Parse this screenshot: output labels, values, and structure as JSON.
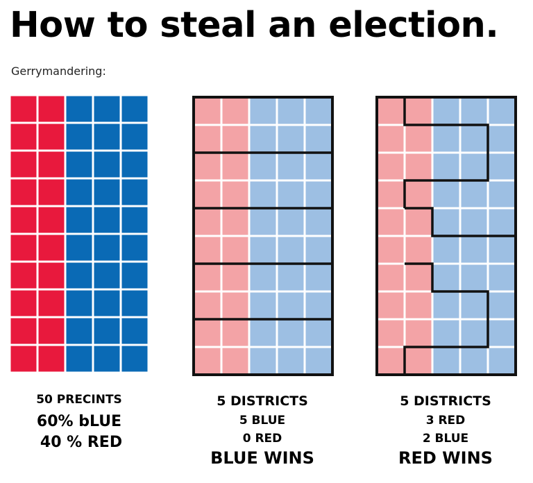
{
  "title": "How to steal an election.",
  "subtitle": "Gerrymandering:",
  "colors": {
    "red": "#E8193D",
    "blue": "#0A6AB5",
    "light_red": "#F3A3A6",
    "light_blue": "#9DBFE3",
    "border": "#111111"
  },
  "grid": {
    "columns": 5,
    "rows": 10,
    "red_columns": 2
  },
  "panels": [
    {
      "caption": [
        "50 PRECINTS",
        "60% bLUE",
        "40 % RED"
      ]
    },
    {
      "caption": [
        "5 DISTRICTS",
        "5 BLUE",
        "0 RED",
        "BLUE WINS"
      ]
    },
    {
      "caption": [
        "5 DISTRICTS",
        "3 RED",
        "2 BLUE",
        "RED WINS"
      ]
    }
  ]
}
